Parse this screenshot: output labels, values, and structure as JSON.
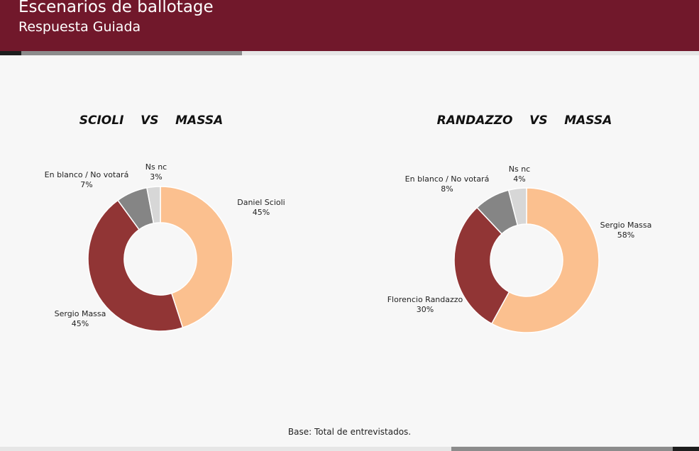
{
  "header": {
    "title": "Escenarios de ballotage",
    "subtitle": "Respuesta Guiada"
  },
  "colors": {
    "header_bg": "#71182b",
    "slice_peach": "#fbc08f",
    "slice_red": "#913535",
    "slice_gray": "#858585",
    "slice_light": "#d7d7d7"
  },
  "chart_data": [
    {
      "type": "donut",
      "title": "SCIOLI    VS    MASSA",
      "slices": [
        {
          "label": "Daniel Scioli",
          "value": 45,
          "display": "45%",
          "color": "#fbc08f"
        },
        {
          "label": "Sergio Massa",
          "value": 45,
          "display": "45%",
          "color": "#913535"
        },
        {
          "label": "En blanco / No votará",
          "value": 7,
          "display": "7%",
          "color": "#858585"
        },
        {
          "label": "Ns nc",
          "value": 3,
          "display": "3%",
          "color": "#d7d7d7"
        }
      ]
    },
    {
      "type": "donut",
      "title": "RANDAZZO    VS    MASSA",
      "slices": [
        {
          "label": "Sergio Massa",
          "value": 58,
          "display": "58%",
          "color": "#fbc08f"
        },
        {
          "label": "Florencio Randazzo",
          "value": 30,
          "display": "30%",
          "color": "#913535"
        },
        {
          "label": "En blanco / No votará",
          "value": 8,
          "display": "8%",
          "color": "#858585"
        },
        {
          "label": "Ns nc",
          "value": 4,
          "display": "4%",
          "color": "#d7d7d7"
        }
      ]
    }
  ],
  "footer": {
    "base_text": "Base: Total de entrevistados."
  }
}
